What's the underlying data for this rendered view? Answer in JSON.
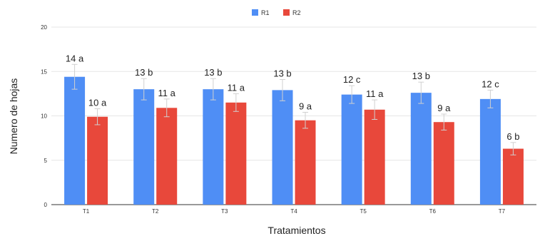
{
  "chart_data": {
    "type": "bar",
    "categories": [
      "T1",
      "T2",
      "T3",
      "T4",
      "T5",
      "T6",
      "T7"
    ],
    "series": [
      {
        "name": "R1",
        "color": "#4f8ef5",
        "values": [
          14.4,
          13.0,
          13.0,
          12.9,
          12.4,
          12.6,
          11.9
        ],
        "error": [
          1.4,
          1.2,
          1.2,
          1.2,
          1.0,
          1.2,
          1.0
        ],
        "labels": [
          "14 a",
          "13 b",
          "13 b",
          "13 b",
          "12 c",
          "13 b",
          "12 c"
        ]
      },
      {
        "name": "R2",
        "color": "#e8483b",
        "values": [
          9.9,
          10.9,
          11.5,
          9.5,
          10.7,
          9.3,
          6.3
        ],
        "error": [
          0.9,
          1.0,
          1.0,
          0.9,
          1.1,
          0.9,
          0.7
        ],
        "labels": [
          "10 a",
          "11 a",
          "11 a",
          "9 a",
          "11 a",
          "9 a",
          "6 b"
        ]
      }
    ],
    "xlabel": "Tratamientos",
    "ylabel": "Numero de hojas",
    "ylim": [
      0,
      20
    ],
    "yticks": [
      "0",
      "5",
      "10",
      "15",
      "20"
    ],
    "grid": true,
    "legend_position": "top-center",
    "error_bar_color": "#d0d0d0"
  }
}
